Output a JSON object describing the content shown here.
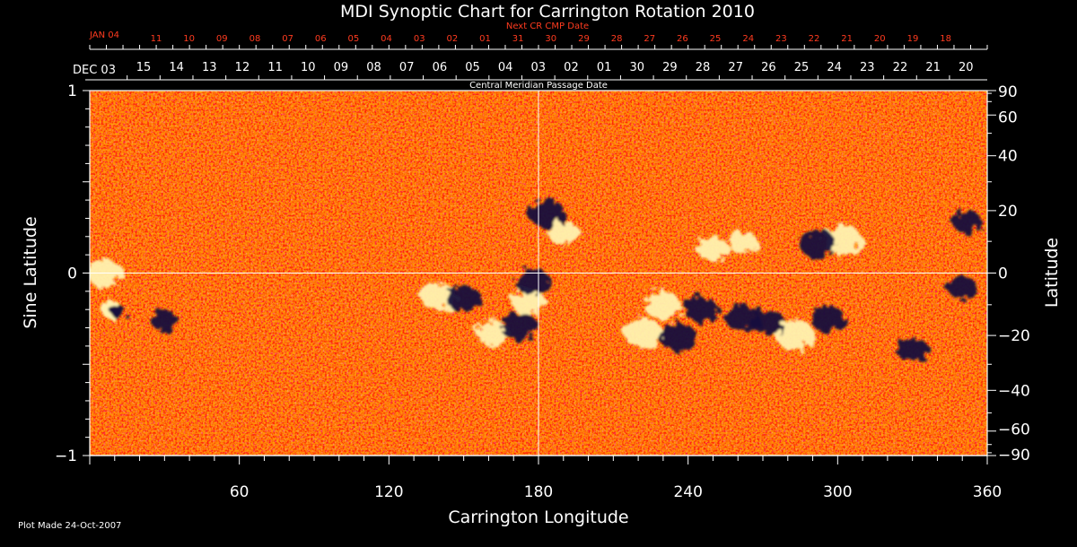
{
  "chart_data": {
    "type": "heatmap",
    "title": "MDI Synoptic Chart for Carrington Rotation 2010",
    "xlabel": "Carrington Longitude",
    "ylabel_left": "Sine Latitude",
    "ylabel_right": "Latitude",
    "xlim": [
      0,
      360
    ],
    "ylim": [
      -1,
      1
    ],
    "x_ticks": [
      60,
      120,
      180,
      240,
      300,
      360
    ],
    "y_ticks_left": [
      1,
      0,
      -1
    ],
    "y_ticks_left_labels": [
      "1",
      "0",
      "−1"
    ],
    "y_ticks_right": [
      90,
      60,
      40,
      20,
      0,
      -20,
      -40,
      -60,
      -90
    ],
    "y_ticks_right_labels": [
      "90",
      "60",
      "40",
      "20",
      "0",
      "−20",
      "−40",
      "−60",
      "−90"
    ],
    "top_axis_cmp": {
      "title": "Central Meridian Passage Date",
      "start_label": "DEC 03",
      "dates": [
        "15",
        "14",
        "13",
        "12",
        "11",
        "10",
        "09",
        "08",
        "07",
        "06",
        "05",
        "04",
        "03",
        "02",
        "01",
        "30",
        "29",
        "28",
        "27",
        "26",
        "25",
        "24",
        "23",
        "22",
        "21",
        "20"
      ]
    },
    "top_axis_next_cr": {
      "title": "Next CR CMP Date",
      "start_label": "JAN 04",
      "dates": [
        "11",
        "10",
        "09",
        "08",
        "07",
        "06",
        "05",
        "04",
        "03",
        "02",
        "01",
        "31",
        "30",
        "29",
        "28",
        "27",
        "26",
        "25",
        "24",
        "23",
        "22",
        "21",
        "20",
        "19",
        "18"
      ]
    },
    "grid_lines": {
      "x": [
        180
      ],
      "y": [
        0
      ]
    },
    "background_color": "#ff5a10",
    "positive_polarity_color": "#fff2b0",
    "negative_polarity_color": "#160f3c",
    "active_regions": [
      {
        "lon": 6,
        "sinlat": 0.0,
        "polarity": "positive",
        "strength": 0.9
      },
      {
        "lon": 10,
        "sinlat": -0.2,
        "polarity": "mixed",
        "strength": 0.6
      },
      {
        "lon": 30,
        "sinlat": -0.26,
        "polarity": "negative",
        "strength": 0.5
      },
      {
        "lon": 140,
        "sinlat": -0.13,
        "polarity": "positive",
        "strength": 0.9
      },
      {
        "lon": 150,
        "sinlat": -0.14,
        "polarity": "negative",
        "strength": 0.8
      },
      {
        "lon": 162,
        "sinlat": -0.33,
        "polarity": "positive",
        "strength": 0.8
      },
      {
        "lon": 172,
        "sinlat": -0.29,
        "polarity": "negative",
        "strength": 0.9
      },
      {
        "lon": 176,
        "sinlat": -0.16,
        "polarity": "positive",
        "strength": 0.8
      },
      {
        "lon": 178,
        "sinlat": -0.05,
        "polarity": "negative",
        "strength": 0.8
      },
      {
        "lon": 183,
        "sinlat": 0.33,
        "polarity": "negative",
        "strength": 0.9
      },
      {
        "lon": 190,
        "sinlat": 0.22,
        "polarity": "positive",
        "strength": 0.7
      },
      {
        "lon": 222,
        "sinlat": -0.33,
        "polarity": "positive",
        "strength": 1.0
      },
      {
        "lon": 230,
        "sinlat": -0.18,
        "polarity": "positive",
        "strength": 0.9
      },
      {
        "lon": 236,
        "sinlat": -0.35,
        "polarity": "negative",
        "strength": 0.9
      },
      {
        "lon": 245,
        "sinlat": -0.2,
        "polarity": "negative",
        "strength": 0.8
      },
      {
        "lon": 262,
        "sinlat": -0.25,
        "polarity": "negative",
        "strength": 0.8
      },
      {
        "lon": 250,
        "sinlat": 0.13,
        "polarity": "positive",
        "strength": 0.7
      },
      {
        "lon": 262,
        "sinlat": 0.17,
        "polarity": "positive",
        "strength": 0.6
      },
      {
        "lon": 283,
        "sinlat": -0.34,
        "polarity": "positive",
        "strength": 1.0
      },
      {
        "lon": 272,
        "sinlat": -0.27,
        "polarity": "negative",
        "strength": 0.8
      },
      {
        "lon": 296,
        "sinlat": -0.25,
        "polarity": "negative",
        "strength": 0.8
      },
      {
        "lon": 302,
        "sinlat": 0.18,
        "polarity": "positive",
        "strength": 1.0
      },
      {
        "lon": 292,
        "sinlat": 0.16,
        "polarity": "negative",
        "strength": 0.9
      },
      {
        "lon": 330,
        "sinlat": -0.42,
        "polarity": "negative",
        "strength": 0.7
      },
      {
        "lon": 352,
        "sinlat": 0.28,
        "polarity": "negative",
        "strength": 0.6
      },
      {
        "lon": 350,
        "sinlat": -0.08,
        "polarity": "negative",
        "strength": 0.6
      }
    ]
  },
  "footer": {
    "plot_made": "Plot Made 24-Oct-2007"
  }
}
